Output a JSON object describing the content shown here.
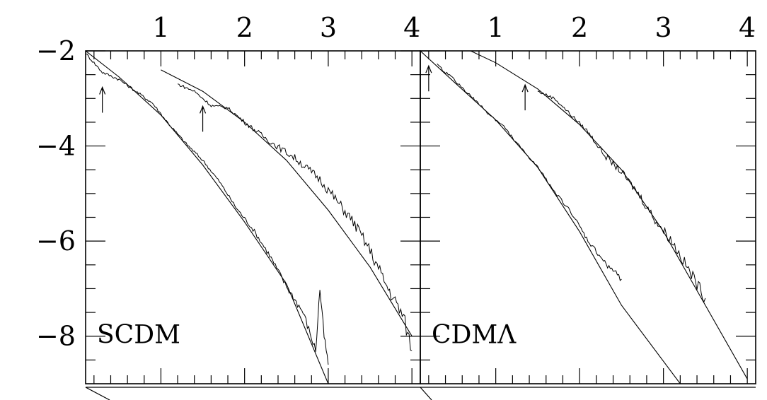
{
  "chart_data": [
    {
      "type": "line",
      "panel_label": "SCDM",
      "xlim": [
        0.1,
        4.1
      ],
      "ylim": [
        -9,
        -2
      ],
      "x_ticks": [
        1,
        2,
        3,
        4
      ],
      "y_ticks": [
        -2,
        -4,
        -6,
        -8
      ],
      "grid": false,
      "series": [
        {
          "curve": "left-model",
          "points": [
            [
              0.1,
              -2.0
            ],
            [
              0.5,
              -2.55
            ],
            [
              1.0,
              -3.35
            ],
            [
              1.5,
              -4.4
            ],
            [
              2.0,
              -5.6
            ],
            [
              2.5,
              -6.9
            ],
            [
              3.0,
              -9.0
            ]
          ]
        },
        {
          "curve": "left-measured",
          "points": [
            [
              0.1,
              -2.05
            ],
            [
              0.3,
              -2.45
            ],
            [
              0.5,
              -2.6
            ],
            [
              0.7,
              -2.85
            ],
            [
              0.9,
              -3.1
            ],
            [
              1.1,
              -3.55
            ],
            [
              1.3,
              -3.95
            ],
            [
              1.5,
              -4.3
            ],
            [
              1.7,
              -4.75
            ],
            [
              1.9,
              -5.3
            ],
            [
              2.1,
              -5.75
            ],
            [
              2.3,
              -6.3
            ],
            [
              2.5,
              -6.95
            ],
            [
              2.7,
              -7.5
            ],
            [
              2.85,
              -8.3
            ],
            [
              2.9,
              -7.0
            ],
            [
              2.95,
              -8.0
            ],
            [
              3.0,
              -8.6
            ]
          ]
        },
        {
          "curve": "right-model",
          "points": [
            [
              1.0,
              -2.4
            ],
            [
              1.5,
              -2.85
            ],
            [
              2.0,
              -3.5
            ],
            [
              2.5,
              -4.3
            ],
            [
              3.0,
              -5.35
            ],
            [
              3.5,
              -6.55
            ],
            [
              4.0,
              -8.0
            ]
          ]
        },
        {
          "curve": "right-measured",
          "points": [
            [
              1.2,
              -2.7
            ],
            [
              1.4,
              -2.85
            ],
            [
              1.6,
              -3.15
            ],
            [
              1.8,
              -3.2
            ],
            [
              2.0,
              -3.5
            ],
            [
              2.3,
              -3.9
            ],
            [
              2.6,
              -4.25
            ],
            [
              2.9,
              -4.7
            ],
            [
              3.1,
              -5.15
            ],
            [
              3.3,
              -5.6
            ],
            [
              3.5,
              -6.2
            ],
            [
              3.7,
              -6.95
            ],
            [
              3.9,
              -7.6
            ],
            [
              4.0,
              -8.3
            ]
          ]
        }
      ],
      "markers": [
        {
          "marker": "arrow",
          "x": 0.3,
          "y": -3.3
        },
        {
          "marker": "arrow",
          "x": 1.5,
          "y": -3.7
        }
      ]
    },
    {
      "type": "line",
      "panel_label": "CDMΛ",
      "xlim": [
        0.1,
        4.1
      ],
      "ylim": [
        -9,
        -2
      ],
      "x_ticks": [
        1,
        2,
        3,
        4
      ],
      "y_ticks": [
        -2,
        -4,
        -6,
        -8
      ],
      "grid": false,
      "series": [
        {
          "curve": "left-model",
          "points": [
            [
              0.1,
              -2.0
            ],
            [
              0.5,
              -2.65
            ],
            [
              1.0,
              -3.45
            ],
            [
              1.5,
              -4.45
            ],
            [
              2.0,
              -5.8
            ],
            [
              2.5,
              -7.35
            ],
            [
              3.2,
              -9.0
            ]
          ]
        },
        {
          "curve": "left-measured",
          "points": [
            [
              0.3,
              -2.3
            ],
            [
              0.5,
              -2.6
            ],
            [
              0.7,
              -2.95
            ],
            [
              0.9,
              -3.3
            ],
            [
              1.1,
              -3.6
            ],
            [
              1.3,
              -4.05
            ],
            [
              1.5,
              -4.45
            ],
            [
              1.7,
              -4.95
            ],
            [
              1.9,
              -5.4
            ],
            [
              2.1,
              -6.0
            ],
            [
              2.3,
              -6.45
            ],
            [
              2.5,
              -6.8
            ]
          ]
        },
        {
          "curve": "right-model",
          "points": [
            [
              0.7,
              -2.0
            ],
            [
              1.0,
              -2.25
            ],
            [
              1.5,
              -2.8
            ],
            [
              2.0,
              -3.55
            ],
            [
              2.5,
              -4.5
            ],
            [
              3.0,
              -5.8
            ],
            [
              3.5,
              -7.35
            ],
            [
              4.0,
              -8.9
            ]
          ]
        },
        {
          "curve": "right-measured",
          "points": [
            [
              1.5,
              -2.85
            ],
            [
              1.7,
              -3.0
            ],
            [
              1.9,
              -3.35
            ],
            [
              2.1,
              -3.7
            ],
            [
              2.3,
              -4.2
            ],
            [
              2.5,
              -4.55
            ],
            [
              2.7,
              -5.0
            ],
            [
              2.9,
              -5.55
            ],
            [
              3.1,
              -6.0
            ],
            [
              3.3,
              -6.6
            ],
            [
              3.5,
              -7.2
            ]
          ]
        }
      ],
      "markers": [
        {
          "marker": "arrow",
          "x": 0.2,
          "y": -2.85
        },
        {
          "marker": "arrow",
          "x": 1.35,
          "y": -3.25
        }
      ]
    }
  ]
}
